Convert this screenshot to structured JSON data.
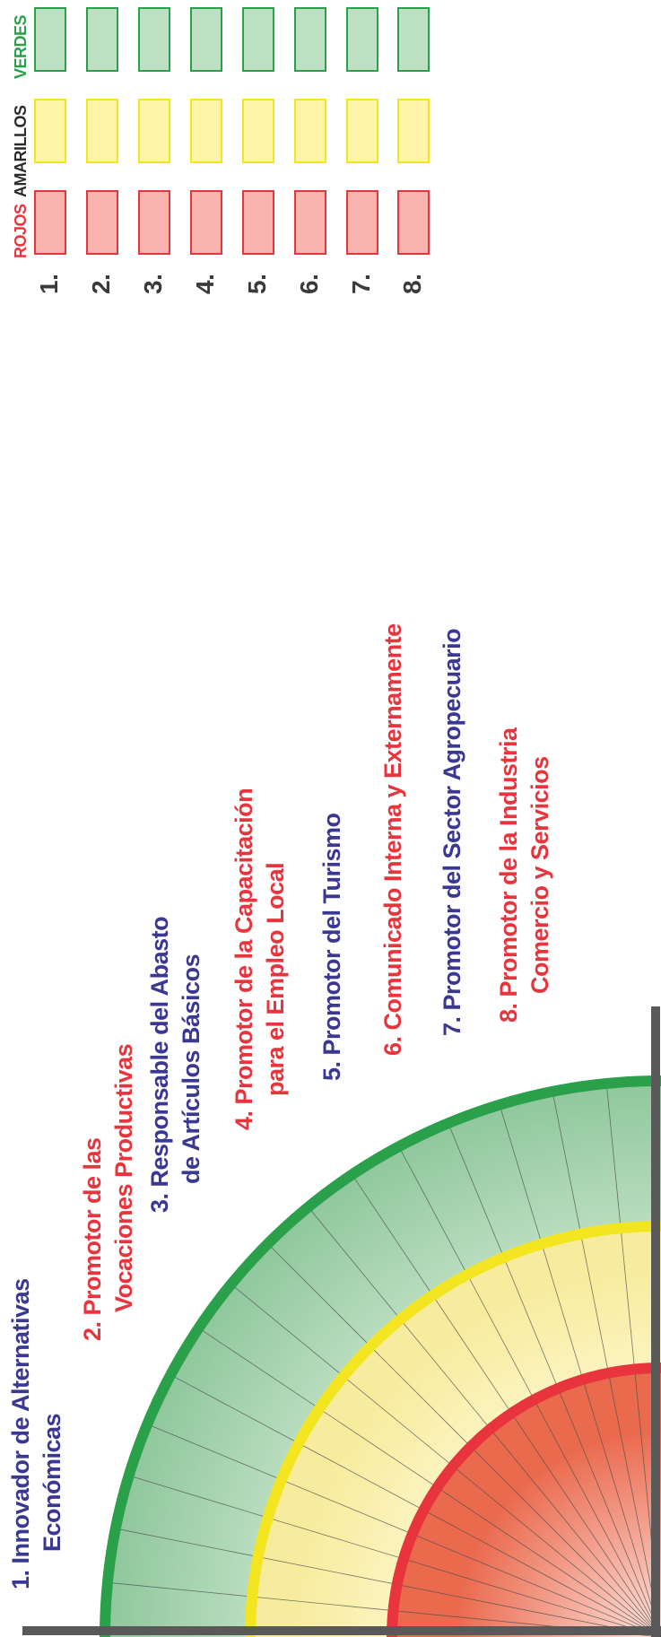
{
  "columns": {
    "red": {
      "label": "ROJOS",
      "fill": "#f9b3ae",
      "stroke": "#e8343c",
      "text": "#e8343c"
    },
    "yellow": {
      "label": "AMARILLOS",
      "fill": "#fff5a8",
      "stroke": "#f3e51f",
      "text": "#2b2b2b"
    },
    "green": {
      "label": "VERDES",
      "fill": "#bee0c4",
      "stroke": "#2aa04a",
      "text": "#2aa04a"
    }
  },
  "row_numbers": [
    "1.",
    "2.",
    "3.",
    "4.",
    "5.",
    "6.",
    "7.",
    "8."
  ],
  "items": [
    {
      "line1": "1. Innovador de Alternativas",
      "line2": "Económicas",
      "color": "blue"
    },
    {
      "line1": "2. Promotor de las",
      "line2": "Vocaciones Productivas",
      "color": "red"
    },
    {
      "line1": "3. Responsable del Abasto",
      "line2": "de Artículos Básicos",
      "color": "blue"
    },
    {
      "line1": "4. Promotor de la Capacitación",
      "line2": "para el Empleo Local",
      "color": "red"
    },
    {
      "line1": "5. Promotor del Turismo",
      "line2": "",
      "color": "blue"
    },
    {
      "line1": "6. Comunicado Interna y Externamente",
      "line2": "",
      "color": "red"
    },
    {
      "line1": "7. Promotor del Sector Agropecuario",
      "line2": "",
      "color": "blue"
    },
    {
      "line1": "8. Promotor de la Industria",
      "line2": "Comercio y Servicios",
      "color": "red"
    }
  ],
  "rings": {
    "outer_color": "#2aa04a",
    "middle_color": "#f3e51f",
    "inner_color": "#e8343c",
    "axis_color": "#595959"
  }
}
